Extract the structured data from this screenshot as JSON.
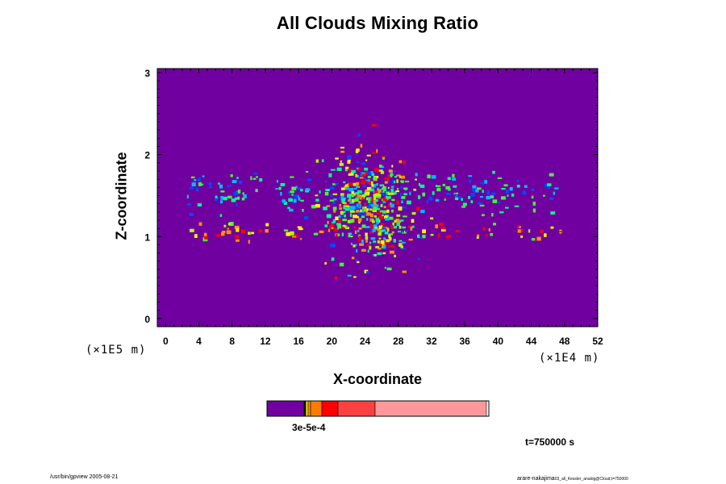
{
  "chart_data": {
    "type": "heatmap",
    "title": "All Clouds Mixing Ratio",
    "xlabel": "X-coordinate",
    "ylabel": "Z-coordinate",
    "x_unit": "(×1E4 m)",
    "y_unit": "(×1E5 m)",
    "xlim": [
      -1,
      52
    ],
    "ylim": [
      -0.1,
      3.05
    ],
    "x_ticks": [
      "0",
      "4",
      "8",
      "12",
      "16",
      "20",
      "24",
      "28",
      "32",
      "36",
      "40",
      "44",
      "48",
      "52"
    ],
    "y_ticks": [
      "0",
      "1",
      "2",
      "3"
    ],
    "background_color": "#7000a0",
    "colorbar": {
      "tick_label": "3e-5e-4",
      "colors": [
        "#7000a0",
        "#ffe000",
        "#ff9a00",
        "#ff7a00",
        "#ff0000",
        "#ff4040",
        "#ff9898"
      ]
    },
    "cloud_layers": [
      {
        "name": "upper",
        "x_range": [
          2.5,
          47
        ],
        "z_center": 1.55,
        "z_spread": 0.12
      },
      {
        "name": "lower",
        "x_range": [
          2.5,
          49
        ],
        "z_center": 1.07,
        "z_spread": 0.06
      },
      {
        "name": "core",
        "x_range": [
          18,
          30
        ],
        "z_center": 1.35,
        "z_spread": 0.35
      }
    ],
    "level_colors": [
      "#0048ff",
      "#00b8ff",
      "#00ff90",
      "#40ff30",
      "#b0ff00",
      "#ffff00",
      "#ff9000",
      "#ff0000"
    ]
  },
  "annotations": {
    "time": "t=750000 s",
    "footer_left": "/usr/bin/gpview 2005-08-21",
    "footer_right_main": "arare-nakajima",
    "footer_right_small": "03_all_Kessler_analog@Cloud,t=750000"
  }
}
